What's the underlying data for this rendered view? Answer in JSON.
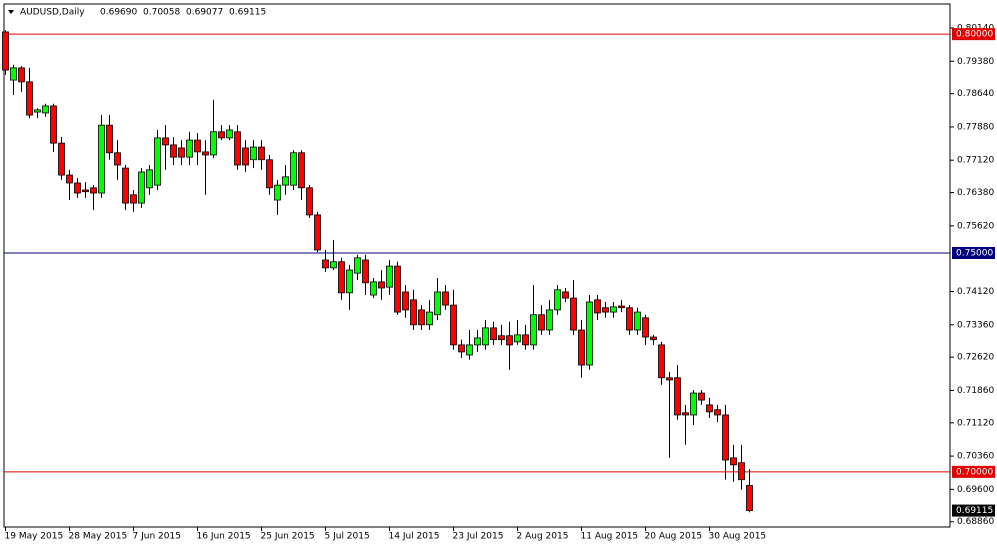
{
  "chart_data": {
    "type": "candlestick",
    "title": "AUDUSD,Daily",
    "header_ohlc": [
      "0.69690",
      "0.70058",
      "0.69077",
      "0.69115"
    ],
    "categories": [
      "19 May 2015",
      null,
      null,
      null,
      null,
      null,
      null,
      null,
      "28 May 2015",
      null,
      null,
      null,
      null,
      null,
      null,
      null,
      "7 Jun 2015",
      null,
      null,
      null,
      null,
      null,
      null,
      null,
      "16 Jun 2015",
      null,
      null,
      null,
      null,
      null,
      null,
      null,
      "25 Jun 2015",
      null,
      null,
      null,
      null,
      null,
      null,
      null,
      "5 Jul 2015",
      null,
      null,
      null,
      null,
      null,
      null,
      null,
      "14 Jul 2015",
      null,
      null,
      null,
      null,
      null,
      null,
      null,
      "23 Jul 2015",
      null,
      null,
      null,
      null,
      null,
      null,
      null,
      "2 Aug 2015",
      null,
      null,
      null,
      null,
      null,
      null,
      null,
      "11 Aug 2015",
      null,
      null,
      null,
      null,
      null,
      null,
      null,
      "20 Aug 2015",
      null,
      null,
      null,
      null,
      null,
      null,
      null,
      "30 Aug 2015",
      null,
      null,
      null,
      null,
      null
    ],
    "open": [
      0.8005,
      0.7895,
      0.7923,
      0.7891,
      0.7822,
      0.782,
      0.7836,
      0.7751,
      0.7678,
      0.766,
      0.7644,
      0.7649,
      0.7637,
      0.7792,
      0.7729,
      0.7694,
      0.7633,
      0.7614,
      0.7649,
      0.7655,
      0.7763,
      0.7747,
      0.774,
      0.7719,
      0.7758,
      0.7731,
      0.7724,
      0.7777,
      0.7763,
      0.7777,
      0.774,
      0.7713,
      0.7742,
      0.7713,
      0.7621,
      0.7655,
      0.7655,
      0.7729,
      0.7649,
      0.7587,
      0.7484,
      0.7466,
      0.748,
      0.7409,
      0.7454,
      0.7484,
      0.7404,
      0.7434,
      0.7422,
      0.747,
      0.7411,
      0.7393,
      0.737,
      0.7336,
      0.7359,
      0.7411,
      0.7381,
      0.729,
      0.7267,
      0.729,
      0.729,
      0.7329,
      0.7311,
      0.7311,
      0.7297,
      0.7313,
      0.729,
      0.7359,
      0.7324,
      0.737,
      0.7411,
      0.7397,
      0.7324,
      0.7244,
      0.7393,
      0.7375,
      0.7365,
      0.7379,
      0.7375,
      0.7324,
      0.7352,
      0.7308,
      0.729,
      0.7215,
      0.7215,
      0.7135,
      0.713,
      0.718,
      0.7153,
      0.7142,
      0.713,
      0.7032,
      0.7021,
      0.6969
    ],
    "high": [
      0.8009,
      0.793,
      0.7927,
      0.7923,
      0.7831,
      0.7841,
      0.7841,
      0.7765,
      0.769,
      0.7671,
      0.7662,
      0.7655,
      0.7815,
      0.7815,
      0.7758,
      0.7701,
      0.7644,
      0.7694,
      0.7701,
      0.7781,
      0.7792,
      0.7765,
      0.7758,
      0.7777,
      0.7774,
      0.7758,
      0.785,
      0.7792,
      0.7792,
      0.7792,
      0.7758,
      0.7758,
      0.7758,
      0.7724,
      0.7667,
      0.7701,
      0.7735,
      0.7735,
      0.7655,
      0.7594,
      0.7507,
      0.753,
      0.7489,
      0.7473,
      0.7496,
      0.7496,
      0.7443,
      0.7461,
      0.7484,
      0.748,
      0.7427,
      0.7416,
      0.7381,
      0.7393,
      0.7443,
      0.7427,
      0.7416,
      0.7302,
      0.7324,
      0.7324,
      0.7347,
      0.7343,
      0.7336,
      0.7343,
      0.7347,
      0.7336,
      0.7427,
      0.7381,
      0.7393,
      0.7427,
      0.742,
      0.7438,
      0.7347,
      0.7404,
      0.7404,
      0.7388,
      0.7388,
      0.7393,
      0.7381,
      0.7375,
      0.7359,
      0.7313,
      0.7297,
      0.7228,
      0.7244,
      0.7153,
      0.7187,
      0.7187,
      0.7169,
      0.7153,
      0.7153,
      0.7062,
      0.7062,
      0.70058
    ],
    "low": [
      0.7907,
      0.7861,
      0.7868,
      0.7808,
      0.7808,
      0.7811,
      0.7731,
      0.7667,
      0.7621,
      0.7626,
      0.7626,
      0.7598,
      0.7626,
      0.7713,
      0.7667,
      0.7598,
      0.7594,
      0.7603,
      0.7633,
      0.7644,
      0.769,
      0.7701,
      0.7701,
      0.7701,
      0.7701,
      0.7633,
      0.7717,
      0.7758,
      0.7758,
      0.769,
      0.7685,
      0.7694,
      0.769,
      0.7633,
      0.7587,
      0.7633,
      0.7644,
      0.7621,
      0.758,
      0.7502,
      0.7457,
      0.7461,
      0.7393,
      0.737,
      0.7438,
      0.7404,
      0.7397,
      0.7393,
      0.7404,
      0.7359,
      0.7352,
      0.7324,
      0.7324,
      0.7324,
      0.7347,
      0.737,
      0.7279,
      0.726,
      0.7256,
      0.7274,
      0.7279,
      0.729,
      0.729,
      0.7233,
      0.729,
      0.7279,
      0.7279,
      0.7313,
      0.7313,
      0.7359,
      0.7388,
      0.7313,
      0.7215,
      0.7233,
      0.7347,
      0.7352,
      0.7352,
      0.7365,
      0.7313,
      0.7313,
      0.729,
      0.729,
      0.7199,
      0.7032,
      0.7119,
      0.7062,
      0.7107,
      0.7153,
      0.7123,
      0.7114,
      0.6982,
      0.6977,
      0.6959,
      0.69077
    ],
    "close": [
      0.7918,
      0.7923,
      0.7891,
      0.7815,
      0.7827,
      0.7836,
      0.7751,
      0.7678,
      0.766,
      0.7637,
      0.764,
      0.7637,
      0.7792,
      0.7729,
      0.7701,
      0.7614,
      0.7614,
      0.7685,
      0.769,
      0.7763,
      0.7747,
      0.7719,
      0.7719,
      0.7758,
      0.7731,
      0.7724,
      0.7777,
      0.7763,
      0.7781,
      0.7701,
      0.7701,
      0.7742,
      0.7713,
      0.7649,
      0.7655,
      0.7674,
      0.7729,
      0.7649,
      0.7587,
      0.7507,
      0.7466,
      0.748,
      0.7409,
      0.7461,
      0.7489,
      0.7432,
      0.7434,
      0.742,
      0.747,
      0.7365,
      0.737,
      0.7336,
      0.7336,
      0.7365,
      0.7411,
      0.7381,
      0.729,
      0.7274,
      0.729,
      0.7306,
      0.7329,
      0.7302,
      0.7302,
      0.729,
      0.7313,
      0.729,
      0.7359,
      0.7324,
      0.737,
      0.7416,
      0.7397,
      0.7324,
      0.7244,
      0.7388,
      0.7363,
      0.7365,
      0.7377,
      0.7375,
      0.7324,
      0.7365,
      0.7308,
      0.7302,
      0.7215,
      0.721,
      0.713,
      0.713,
      0.718,
      0.7164,
      0.7137,
      0.713,
      0.7027,
      0.7016,
      0.6982,
      0.69115
    ],
    "up_color": "#00ff00",
    "down_color": "#ff0000",
    "ylim": [
      0.6874,
      0.8078
    ],
    "yticks": [
      {
        "value": 0.8014,
        "label": "0.80140"
      },
      {
        "value": 0.7938,
        "label": "0.79380"
      },
      {
        "value": 0.7864,
        "label": "0.78640"
      },
      {
        "value": 0.7788,
        "label": "0.77880"
      },
      {
        "value": 0.7712,
        "label": "0.77120"
      },
      {
        "value": 0.7638,
        "label": "0.76380"
      },
      {
        "value": 0.7562,
        "label": "0.75620"
      },
      {
        "value": 0.7412,
        "label": "0.74120"
      },
      {
        "value": 0.7336,
        "label": "0.73360"
      },
      {
        "value": 0.7262,
        "label": "0.72620"
      },
      {
        "value": 0.7186,
        "label": "0.71860"
      },
      {
        "value": 0.7112,
        "label": "0.71120"
      },
      {
        "value": 0.7036,
        "label": "0.70360"
      },
      {
        "value": 0.696,
        "label": "0.69600"
      },
      {
        "value": 0.6886,
        "label": "0.68860"
      }
    ],
    "hlines": [
      {
        "value": 0.8,
        "label": "0.80000",
        "color": "#e00000"
      },
      {
        "value": 0.75,
        "label": "0.75000",
        "color": "#00007f"
      },
      {
        "value": 0.7,
        "label": "0.70000",
        "color": "#e00000"
      }
    ]
  }
}
